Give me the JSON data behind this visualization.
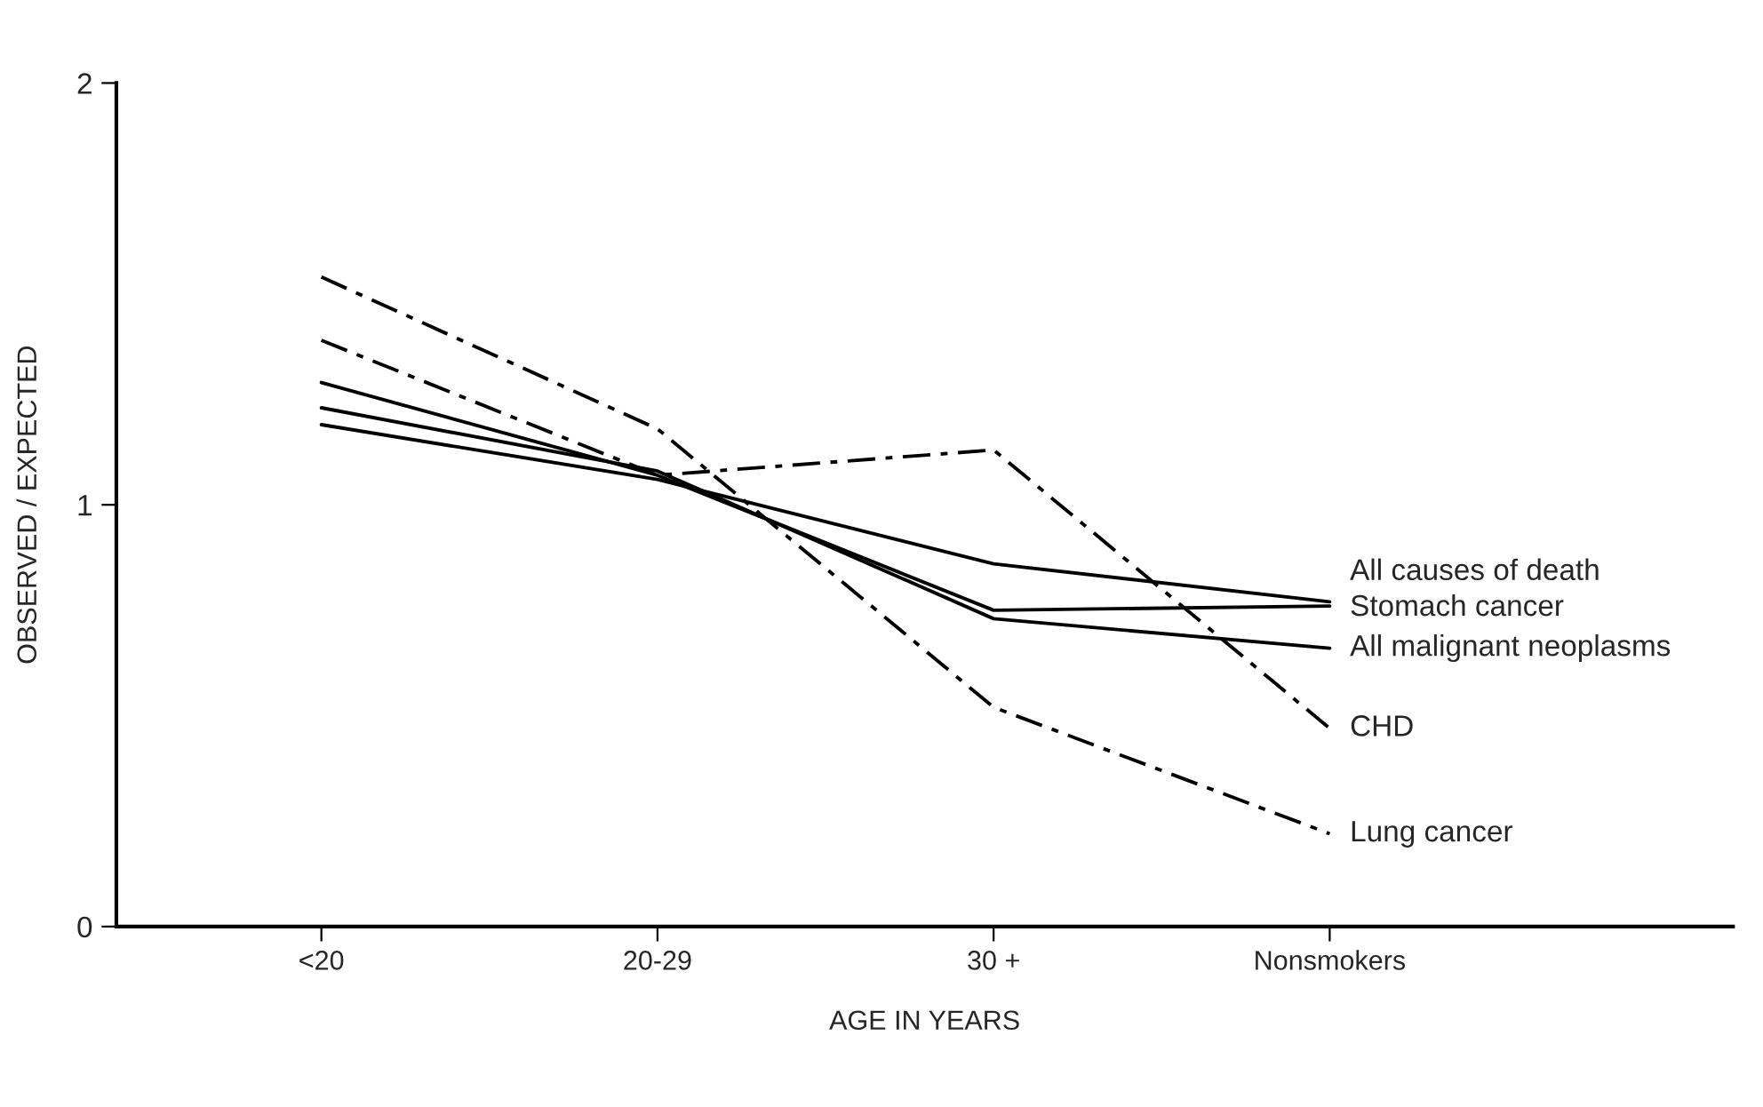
{
  "chart_data": {
    "type": "line",
    "xlabel": "AGE IN YEARS",
    "ylabel": "OBSERVED / EXPECTED",
    "categories": [
      "<20",
      "20-29",
      "30 +",
      "Nonsmokers"
    ],
    "ylim": [
      0,
      2
    ],
    "yticks": [
      0,
      1,
      2
    ],
    "grid": false,
    "legend": false,
    "marker": "none",
    "series": [
      {
        "name": "All causes of death",
        "color": "#000000",
        "line_style": "solid",
        "values": [
          1.19,
          1.06,
          0.86,
          0.77
        ]
      },
      {
        "name": "Stomach cancer",
        "color": "#000000",
        "line_style": "solid",
        "values": [
          1.29,
          1.07,
          0.75,
          0.76
        ]
      },
      {
        "name": "All malignant neoplasms",
        "color": "#000000",
        "line_style": "solid",
        "values": [
          1.23,
          1.08,
          0.73,
          0.66
        ]
      },
      {
        "name": "CHD",
        "color": "#000000",
        "line_style": "dashed",
        "values": [
          1.39,
          1.07,
          1.13,
          0.47
        ]
      },
      {
        "name": "Lung cancer",
        "color": "#000000",
        "line_style": "dashed",
        "values": [
          1.54,
          1.18,
          0.52,
          0.22
        ]
      }
    ]
  }
}
